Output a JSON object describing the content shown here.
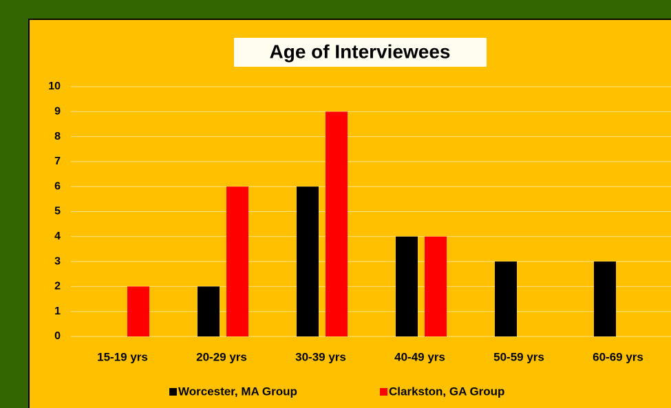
{
  "chart_data": {
    "type": "bar",
    "title": "Age of Interviewees",
    "categories": [
      "15-19 yrs",
      "20-29 yrs",
      "30-39 yrs",
      "40-49 yrs",
      "50-59 yrs",
      "60-69 yrs"
    ],
    "series": [
      {
        "name": "Worcester, MA Group",
        "color": "#000000",
        "values": [
          0,
          2,
          6,
          4,
          3,
          3
        ]
      },
      {
        "name": "Clarkston, GA Group",
        "color": "#ff0000",
        "values": [
          2,
          6,
          9,
          4,
          0,
          0
        ]
      }
    ],
    "ylim": [
      0,
      10
    ],
    "yticks": [
      0,
      1,
      2,
      3,
      4,
      5,
      6,
      7,
      8,
      9,
      10
    ],
    "grid": true,
    "legend": "bottom"
  }
}
